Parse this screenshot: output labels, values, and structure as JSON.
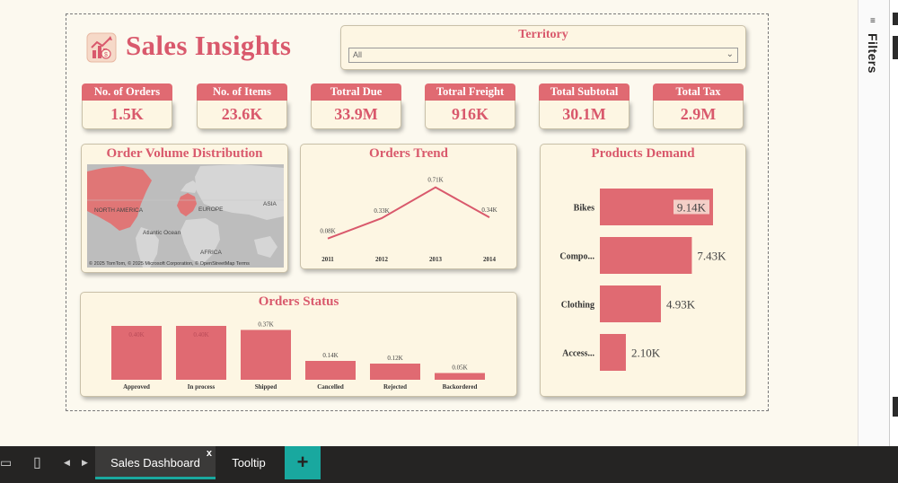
{
  "header": {
    "title": "Sales Insights"
  },
  "territory": {
    "label": "Territory",
    "selected": "All"
  },
  "kpis": [
    {
      "label": "No. of Orders",
      "value": "1.5K"
    },
    {
      "label": "No. of Items",
      "value": "23.6K"
    },
    {
      "label": "Totral Due",
      "value": "33.9M"
    },
    {
      "label": "Totral Freight",
      "value": "916K"
    },
    {
      "label": "Total Subtotal",
      "value": "30.1M"
    },
    {
      "label": "Total Tax",
      "value": "2.9M"
    }
  ],
  "map": {
    "title": "Order Volume Distribution",
    "labels": {
      "north_america": "NORTH AMERICA",
      "europe": "EUROPE",
      "asia": "ASIA",
      "ocean": "Atlantic Ocean",
      "africa": "AFRICA"
    },
    "attribution": "© 2025 TomTom, © 2025 Microsoft Corporation, © OpenStreetMap  Terms"
  },
  "trend": {
    "title": "Orders Trend",
    "chart_data": {
      "type": "line",
      "x": [
        "2011",
        "2012",
        "2013",
        "2014"
      ],
      "values": [
        0.08,
        0.33,
        0.71,
        0.34
      ],
      "data_labels": [
        "0.08K",
        "0.33K",
        "0.71K",
        "0.34K"
      ],
      "color": "#d9596c"
    }
  },
  "products": {
    "title": "Products Demand",
    "chart_data": {
      "type": "bar",
      "orientation": "horizontal",
      "categories": [
        "Bikes",
        "Compo...",
        "Clothing",
        "Access..."
      ],
      "values": [
        9.14,
        7.43,
        4.93,
        2.1
      ],
      "data_labels": [
        "9.14K",
        "7.43K",
        "4.93K",
        "2.10K"
      ],
      "color": "#e06a72"
    }
  },
  "status": {
    "title": "Orders Status",
    "chart_data": {
      "type": "bar",
      "categories": [
        "Approved",
        "In process",
        "Shipped",
        "Cancelled",
        "Rejected",
        "Backordered"
      ],
      "values": [
        0.4,
        0.4,
        0.37,
        0.14,
        0.12,
        0.05
      ],
      "data_labels": [
        "0.40K",
        "0.40K",
        "0.37K",
        "0.14K",
        "0.12K",
        "0.05K"
      ],
      "color": "#e06a72"
    }
  },
  "tabs": {
    "active": "Sales Dashboard",
    "close": "x",
    "second": "Tooltip",
    "add": "+"
  },
  "filters": {
    "label": "Filters",
    "collapse_icon": "collapse-icon"
  }
}
